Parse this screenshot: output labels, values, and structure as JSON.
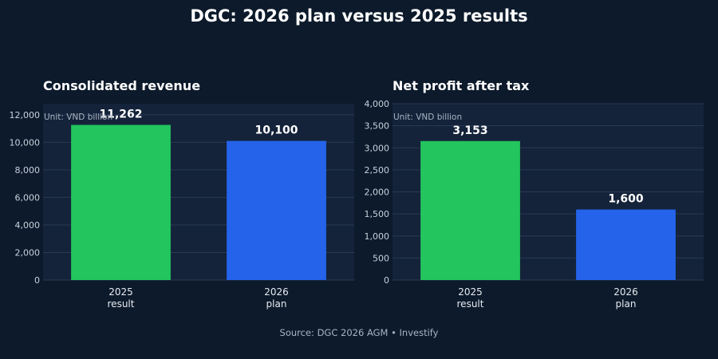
{
  "title": "DGC: 2026 plan versus 2025 results",
  "source": "Source: DGC 2026 AGM • Investify",
  "colors": {
    "background": "#0c1a2b",
    "plot_bg": "#14233a",
    "grid": "#2a3a55",
    "result": "#22c55e",
    "plan": "#2563eb"
  },
  "chart_data": [
    {
      "type": "bar",
      "title": "Consolidated revenue",
      "annotation": "Unit: VND billion",
      "categories": [
        [
          "2025",
          "result"
        ],
        [
          "2026",
          "plan"
        ]
      ],
      "values": [
        11262,
        10100
      ],
      "value_labels": [
        "11,262",
        "10,100"
      ],
      "bar_colors": [
        "#22c55e",
        "#2563eb"
      ],
      "ylim": [
        0,
        12800
      ],
      "yticks": [
        0,
        2000,
        4000,
        6000,
        8000,
        10000,
        12000
      ],
      "ytick_labels": [
        "0",
        "2,000",
        "4,000",
        "6,000",
        "8,000",
        "10,000",
        "12,000"
      ],
      "grid": true
    },
    {
      "type": "bar",
      "title": "Net profit after tax",
      "annotation": "Unit: VND billion",
      "categories": [
        [
          "2025",
          "result"
        ],
        [
          "2026",
          "plan"
        ]
      ],
      "values": [
        3153,
        1600
      ],
      "value_labels": [
        "3,153",
        "1,600"
      ],
      "bar_colors": [
        "#22c55e",
        "#2563eb"
      ],
      "ylim": [
        0,
        4000
      ],
      "yticks": [
        0,
        500,
        1000,
        1500,
        2000,
        2500,
        3000,
        3500,
        4000
      ],
      "ytick_labels": [
        "0",
        "500",
        "1,000",
        "1,500",
        "2,000",
        "2,500",
        "3,000",
        "3,500",
        "4,000"
      ],
      "grid": true
    }
  ]
}
